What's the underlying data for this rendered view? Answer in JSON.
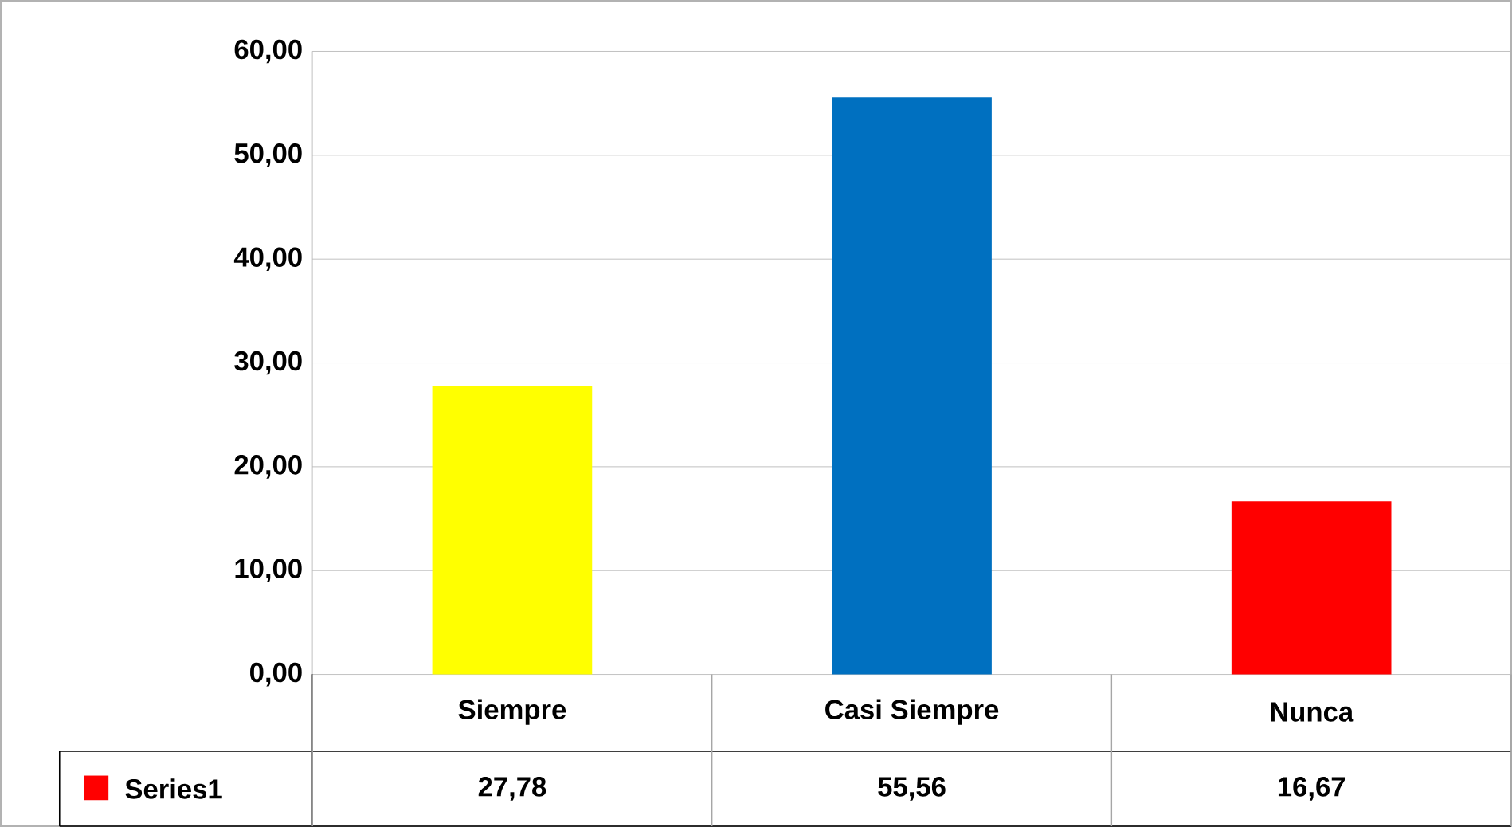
{
  "chart_data": {
    "type": "bar",
    "categories": [
      "Siempre",
      "Casi Siempre",
      "Nunca"
    ],
    "series": [
      {
        "name": "Series1",
        "color": "#ff0000",
        "colors": [
          "#ffff00",
          "#0070c0",
          "#ff0000"
        ],
        "values": [
          27.78,
          55.56,
          16.67
        ],
        "value_labels": [
          "27,78",
          "55,56",
          "16,67"
        ]
      }
    ],
    "ylim": [
      0,
      60
    ],
    "yticks": [
      {
        "value": 0,
        "label": "0,00"
      },
      {
        "value": 10,
        "label": "10,00"
      },
      {
        "value": 20,
        "label": "20,00"
      },
      {
        "value": 30,
        "label": "30,00"
      },
      {
        "value": 40,
        "label": "40,00"
      },
      {
        "value": 50,
        "label": "50,00"
      },
      {
        "value": 60,
        "label": "60,00"
      }
    ],
    "grid": "y",
    "legend": "bottom"
  }
}
